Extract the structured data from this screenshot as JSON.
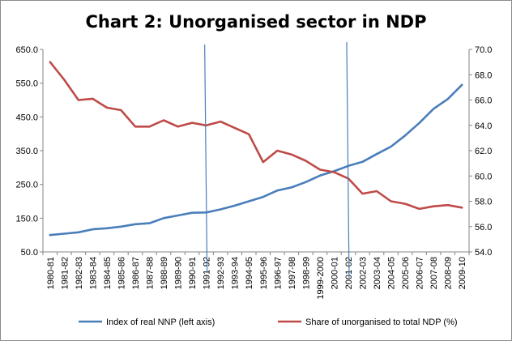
{
  "chart_data": {
    "type": "line",
    "title": "Chart 2: Unorganised sector in NDP",
    "categories": [
      "1980-81",
      "1981-82",
      "1982-83",
      "1983-84",
      "1984-85",
      "1985-86",
      "1986-87",
      "1987-88",
      "1988-89",
      "1989-90",
      "1990-91",
      "1991-92",
      "1992-93",
      "1993-94",
      "1994-95",
      "1995-96",
      "1996-97",
      "1997-98",
      "1998-99",
      "1999-2000",
      "2000-01",
      "2001-02",
      "2002-03",
      "2003-04",
      "2004-05",
      "2005-06",
      "2006-07",
      "2007-08",
      "2008-09",
      "2009-10"
    ],
    "left_axis": {
      "min": 50,
      "max": 650,
      "ticks": [
        50,
        150,
        250,
        350,
        450,
        550,
        650
      ],
      "tick_labels": [
        "50.0",
        "150.0",
        "250.0",
        "350.0",
        "450.0",
        "550.0",
        "650.0"
      ]
    },
    "right_axis": {
      "min": 54,
      "max": 70,
      "ticks": [
        54,
        56,
        58,
        60,
        62,
        64,
        66,
        68,
        70
      ],
      "tick_labels": [
        "54.0",
        "56.0",
        "58.0",
        "60.0",
        "62.0",
        "64.0",
        "66.0",
        "68.0",
        "70.0"
      ]
    },
    "series": [
      {
        "name": "Index of real NNP (left axis)",
        "axis": "left",
        "color": "#4a7ebb",
        "values": [
          100,
          104,
          108,
          117,
          120,
          125,
          132,
          135,
          150,
          158,
          166,
          167,
          176,
          187,
          200,
          213,
          232,
          241,
          257,
          276,
          289,
          305,
          317,
          340,
          362,
          395,
          432,
          474,
          503,
          545
        ]
      },
      {
        "name": "Share of unorganised to total NDP (%)",
        "axis": "right",
        "color": "#be4b48",
        "values": [
          69.0,
          67.6,
          66.0,
          66.1,
          65.4,
          65.2,
          63.9,
          63.9,
          64.4,
          63.9,
          64.2,
          64.0,
          64.3,
          63.8,
          63.3,
          61.1,
          62.0,
          61.7,
          61.2,
          60.5,
          60.3,
          59.8,
          58.6,
          58.8,
          58.0,
          57.8,
          57.4,
          57.6,
          57.7,
          57.5
        ]
      }
    ],
    "markers": [
      {
        "category": "1991-92",
        "color": "#4a7ebb"
      },
      {
        "category": "2001-02",
        "color": "#4a7ebb"
      }
    ],
    "legend_position": "bottom",
    "grid": false
  }
}
